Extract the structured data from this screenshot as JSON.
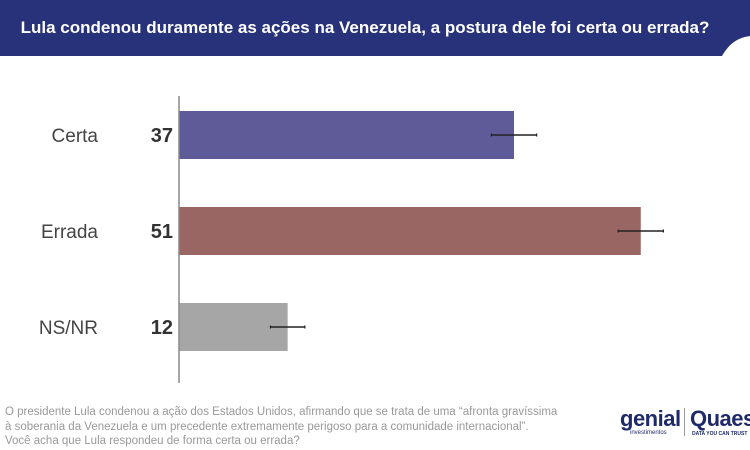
{
  "header": {
    "title": "Lula condenou duramente as ações na Venezuela, a postura dele foi certa ou errada?",
    "color": "#27327a"
  },
  "chart_data": {
    "type": "bar",
    "orientation": "horizontal",
    "title": "Lula condenou duramente as ações na Venezuela, a postura dele foi certa ou errada?",
    "categories": [
      "Certa",
      "Errada",
      "NS/NR"
    ],
    "values": [
      37,
      51,
      12
    ],
    "error_margins": [
      2.5,
      2.5,
      1.9
    ],
    "colors": [
      "#5f5b99",
      "#9a6663",
      "#a6a6a6"
    ],
    "xlim": [
      0,
      60
    ],
    "grid": false,
    "data_labels": true
  },
  "footnote": {
    "lines": [
      "O presidente Lula condenou a ação dos Estados Unidos, afirmando que se trata de uma “afronta gravíssima",
      "à soberania da Venezuela e um precedente extremamente perigoso para a comunidade internacional”.",
      "Você acha que Lula respondeu de forma certa ou errada?"
    ]
  },
  "logos": {
    "genial": "genial",
    "genial_sub": "investimentos",
    "quaest": "Quaest",
    "quaest_sub": "DATA YOU CAN TRUST"
  }
}
